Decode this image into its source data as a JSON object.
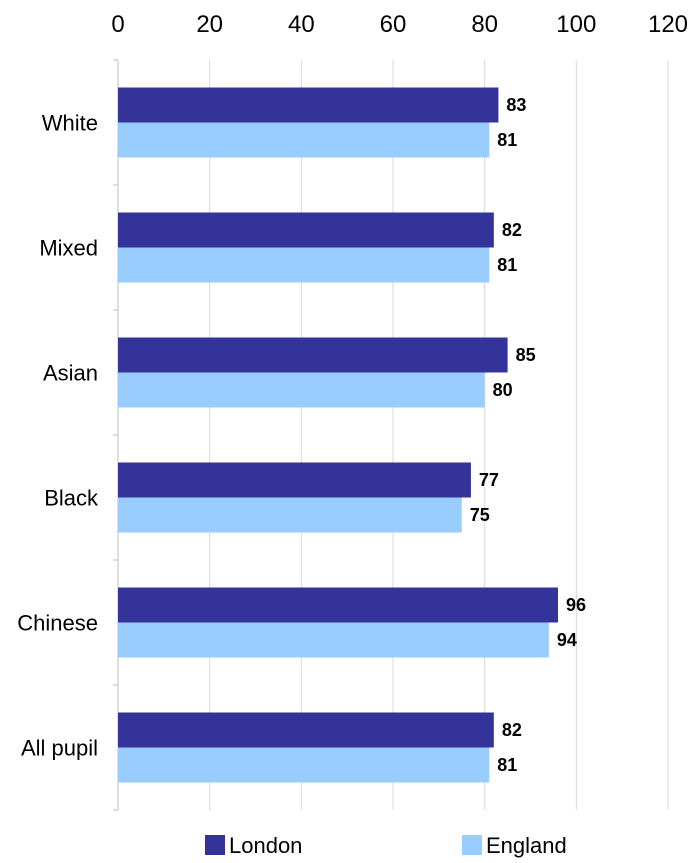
{
  "chart_data": {
    "type": "bar",
    "orientation": "horizontal",
    "categories": [
      "White",
      "Mixed",
      "Asian",
      "Black",
      "Chinese",
      "All pupil"
    ],
    "series": [
      {
        "name": "London",
        "values": [
          83,
          82,
          85,
          77,
          96,
          82
        ],
        "color": "#333399"
      },
      {
        "name": "England",
        "values": [
          81,
          81,
          80,
          75,
          94,
          81
        ],
        "color": "#99CCFF"
      }
    ],
    "xlim": [
      0,
      120
    ],
    "xticks": [
      "0",
      "20",
      "40",
      "60",
      "80",
      "100",
      "120"
    ],
    "xaxis_position": "top",
    "grid": true,
    "grid_color": "#D9D9D9",
    "legend": "bottom",
    "title": "",
    "xlabel": "",
    "ylabel": ""
  }
}
